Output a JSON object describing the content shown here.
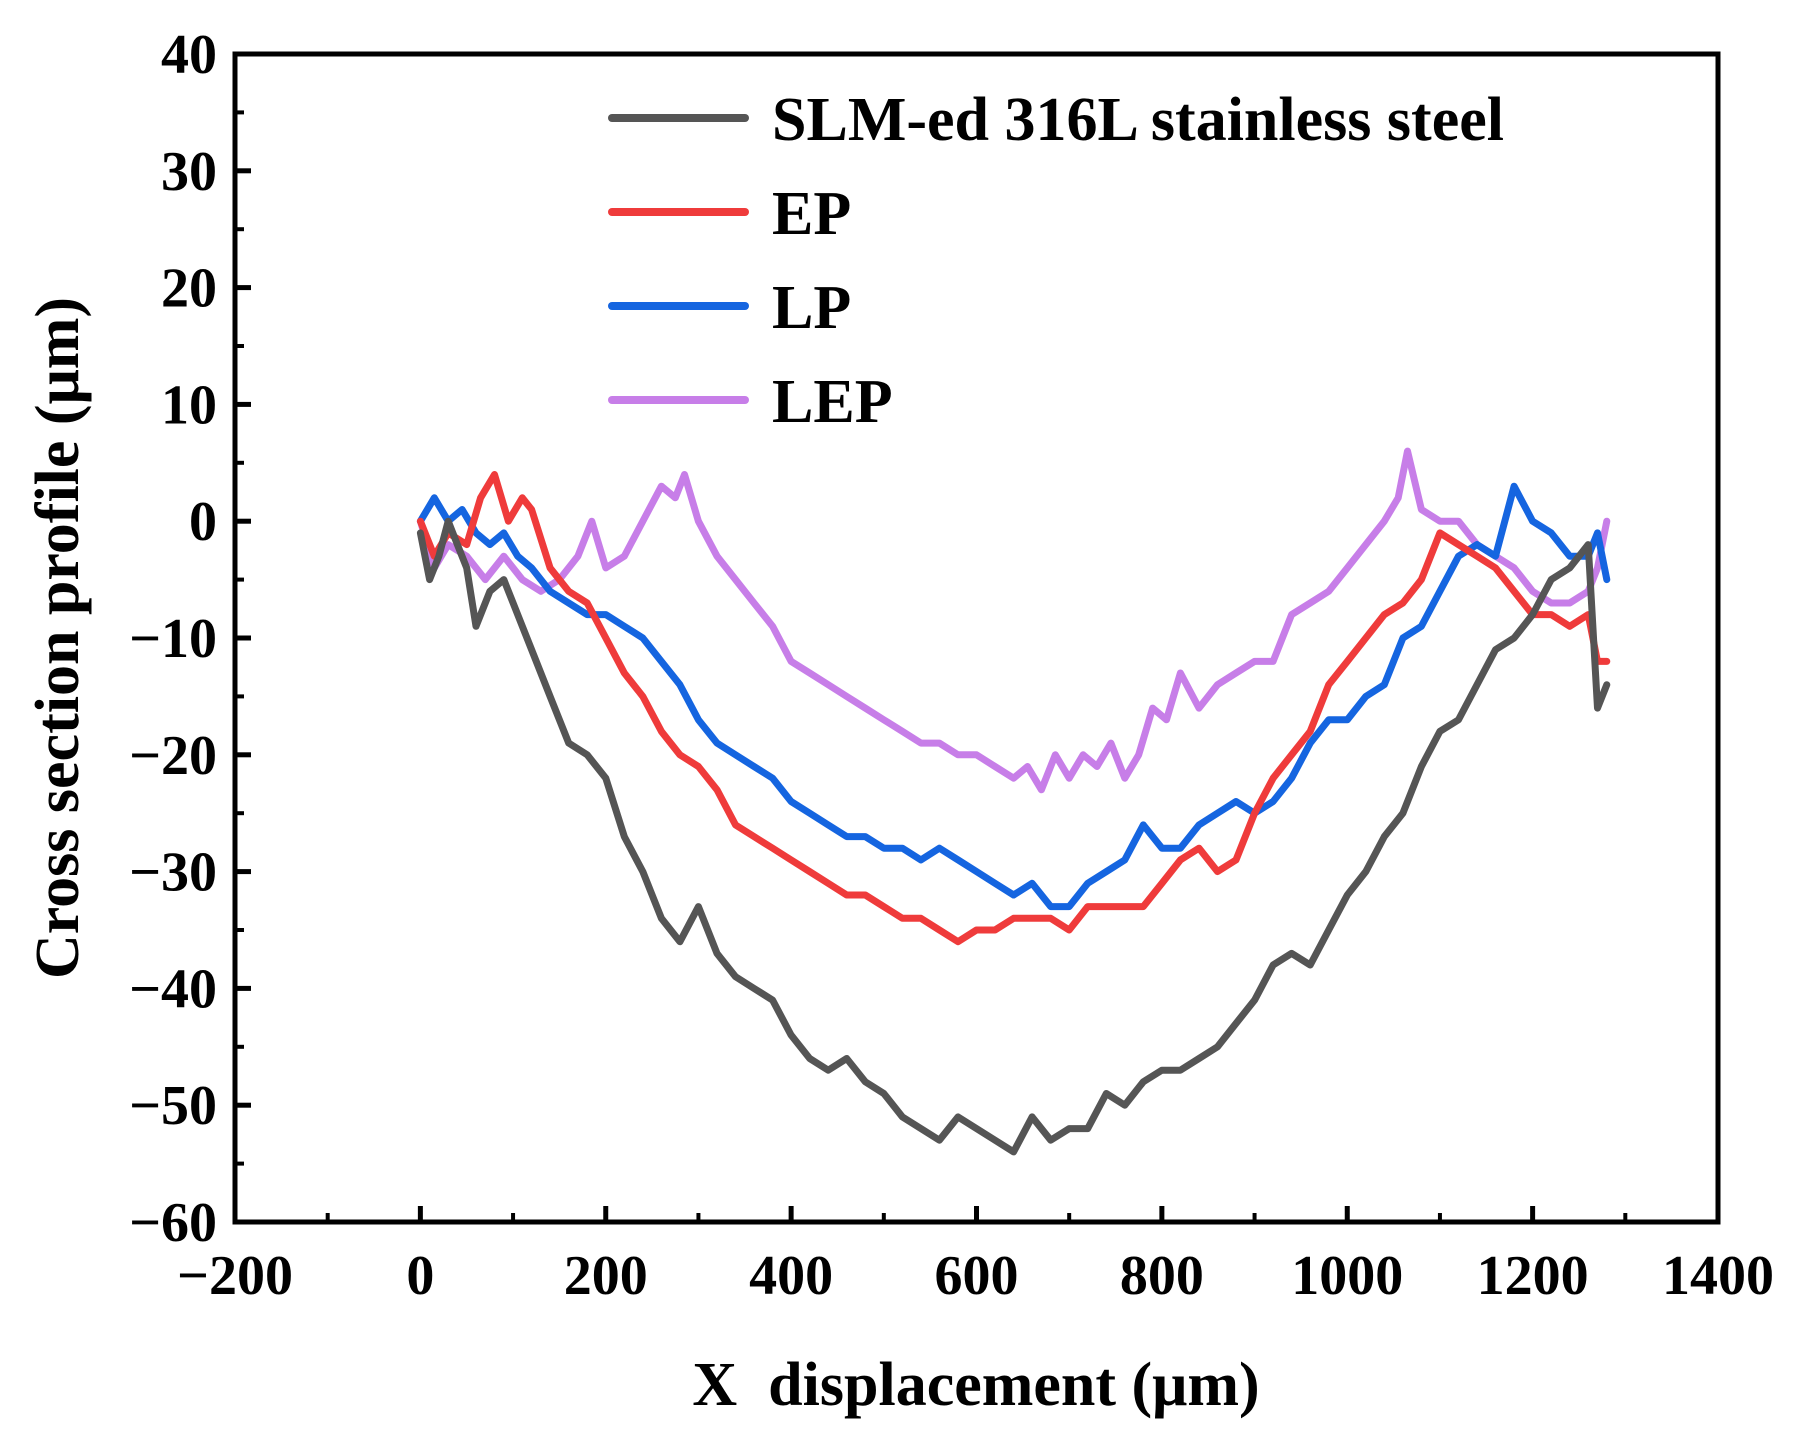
{
  "chart_data": {
    "type": "line",
    "title": "",
    "xlabel": "X  displacement (μm)",
    "ylabel": "Cross section profile (μm)",
    "xlim": [
      -200,
      1400
    ],
    "ylim": [
      -60,
      40
    ],
    "xticks": [
      -200,
      0,
      200,
      400,
      600,
      800,
      1000,
      1200,
      1400
    ],
    "yticks": [
      -60,
      -50,
      -40,
      -30,
      -20,
      -10,
      0,
      10,
      20,
      30,
      40
    ],
    "xtick_labels": [
      "−200",
      "0",
      "200",
      "400",
      "600",
      "800",
      "1000",
      "1200",
      "1400"
    ],
    "ytick_labels": [
      "−60",
      "−50",
      "−40",
      "−30",
      "−20",
      "−10",
      "0",
      "10",
      "20",
      "30",
      "40"
    ],
    "grid": false,
    "legend_position": "top-right",
    "series": [
      {
        "name": "SLM-ed 316L stainless steel",
        "color": "#555555",
        "x": [
          0,
          10,
          20,
          30,
          40,
          50,
          60,
          75,
          90,
          100,
          120,
          140,
          160,
          180,
          200,
          220,
          240,
          260,
          280,
          300,
          320,
          340,
          360,
          380,
          400,
          420,
          440,
          460,
          480,
          500,
          520,
          540,
          560,
          580,
          600,
          620,
          640,
          660,
          680,
          700,
          720,
          740,
          760,
          780,
          800,
          820,
          840,
          860,
          880,
          900,
          920,
          940,
          960,
          980,
          1000,
          1020,
          1040,
          1060,
          1080,
          1100,
          1120,
          1140,
          1160,
          1180,
          1200,
          1220,
          1240,
          1260,
          1270,
          1280
        ],
        "values": [
          -1,
          -5,
          -3,
          0,
          -2,
          -4,
          -9,
          -6,
          -5,
          -7,
          -11,
          -15,
          -19,
          -20,
          -22,
          -27,
          -30,
          -34,
          -36,
          -33,
          -37,
          -39,
          -40,
          -41,
          -44,
          -46,
          -47,
          -46,
          -48,
          -49,
          -51,
          -52,
          -53,
          -51,
          -52,
          -53,
          -54,
          -51,
          -53,
          -52,
          -52,
          -49,
          -50,
          -48,
          -47,
          -47,
          -46,
          -45,
          -43,
          -41,
          -38,
          -37,
          -38,
          -35,
          -32,
          -30,
          -27,
          -25,
          -21,
          -18,
          -17,
          -14,
          -11,
          -10,
          -8,
          -5,
          -4,
          -2,
          -16,
          -14
        ]
      },
      {
        "name": "EP",
        "color": "#ef3b3b",
        "x": [
          0,
          15,
          30,
          50,
          65,
          80,
          95,
          110,
          120,
          140,
          160,
          180,
          200,
          220,
          240,
          260,
          280,
          300,
          320,
          340,
          360,
          380,
          400,
          420,
          440,
          460,
          480,
          500,
          520,
          540,
          560,
          580,
          600,
          620,
          640,
          660,
          680,
          700,
          720,
          740,
          760,
          780,
          800,
          820,
          840,
          860,
          880,
          900,
          920,
          940,
          960,
          980,
          1000,
          1020,
          1040,
          1060,
          1080,
          1100,
          1120,
          1140,
          1160,
          1180,
          1200,
          1220,
          1240,
          1260,
          1270,
          1280
        ],
        "values": [
          0,
          -3,
          -1,
          -2,
          2,
          4,
          0,
          2,
          1,
          -4,
          -6,
          -7,
          -10,
          -13,
          -15,
          -18,
          -20,
          -21,
          -23,
          -26,
          -27,
          -28,
          -29,
          -30,
          -31,
          -32,
          -32,
          -33,
          -34,
          -34,
          -35,
          -36,
          -35,
          -35,
          -34,
          -34,
          -34,
          -35,
          -33,
          -33,
          -33,
          -33,
          -31,
          -29,
          -28,
          -30,
          -29,
          -25,
          -22,
          -20,
          -18,
          -14,
          -12,
          -10,
          -8,
          -7,
          -5,
          -1,
          -2,
          -3,
          -4,
          -6,
          -8,
          -8,
          -9,
          -8,
          -12,
          -12
        ]
      },
      {
        "name": "LP",
        "color": "#1565e0",
        "x": [
          0,
          15,
          30,
          45,
          60,
          75,
          90,
          105,
          120,
          140,
          160,
          180,
          200,
          220,
          240,
          260,
          280,
          300,
          320,
          340,
          360,
          380,
          400,
          420,
          440,
          460,
          480,
          500,
          520,
          540,
          560,
          580,
          600,
          620,
          640,
          660,
          680,
          700,
          720,
          740,
          760,
          780,
          800,
          820,
          840,
          860,
          880,
          900,
          920,
          940,
          960,
          980,
          1000,
          1020,
          1040,
          1060,
          1080,
          1100,
          1120,
          1140,
          1160,
          1180,
          1200,
          1220,
          1240,
          1260,
          1270,
          1280
        ],
        "values": [
          0,
          2,
          0,
          1,
          -1,
          -2,
          -1,
          -3,
          -4,
          -6,
          -7,
          -8,
          -8,
          -9,
          -10,
          -12,
          -14,
          -17,
          -19,
          -20,
          -21,
          -22,
          -24,
          -25,
          -26,
          -27,
          -27,
          -28,
          -28,
          -29,
          -28,
          -29,
          -30,
          -31,
          -32,
          -31,
          -33,
          -33,
          -31,
          -30,
          -29,
          -26,
          -28,
          -28,
          -26,
          -25,
          -24,
          -25,
          -24,
          -22,
          -19,
          -17,
          -17,
          -15,
          -14,
          -10,
          -9,
          -6,
          -3,
          -2,
          -3,
          3,
          0,
          -1,
          -3,
          -3,
          -1,
          -5
        ]
      },
      {
        "name": "LEP",
        "color": "#c77ee8",
        "x": [
          0,
          15,
          30,
          50,
          70,
          90,
          110,
          130,
          150,
          170,
          185,
          200,
          220,
          240,
          260,
          275,
          285,
          300,
          320,
          340,
          360,
          380,
          400,
          420,
          440,
          460,
          480,
          500,
          520,
          540,
          560,
          580,
          600,
          620,
          640,
          655,
          670,
          685,
          700,
          715,
          730,
          745,
          760,
          775,
          790,
          805,
          820,
          840,
          860,
          880,
          900,
          920,
          940,
          960,
          980,
          1000,
          1020,
          1040,
          1055,
          1065,
          1080,
          1100,
          1120,
          1140,
          1160,
          1180,
          1200,
          1220,
          1240,
          1260,
          1270,
          1280
        ],
        "values": [
          0,
          -4,
          -2,
          -3,
          -5,
          -3,
          -5,
          -6,
          -5,
          -3,
          0,
          -4,
          -3,
          0,
          3,
          2,
          4,
          0,
          -3,
          -5,
          -7,
          -9,
          -12,
          -13,
          -14,
          -15,
          -16,
          -17,
          -18,
          -19,
          -19,
          -20,
          -20,
          -21,
          -22,
          -21,
          -23,
          -20,
          -22,
          -20,
          -21,
          -19,
          -22,
          -20,
          -16,
          -17,
          -13,
          -16,
          -14,
          -13,
          -12,
          -12,
          -8,
          -7,
          -6,
          -4,
          -2,
          0,
          2,
          6,
          1,
          0,
          0,
          -2,
          -3,
          -4,
          -6,
          -7,
          -7,
          -6,
          -4,
          0
        ]
      }
    ]
  }
}
